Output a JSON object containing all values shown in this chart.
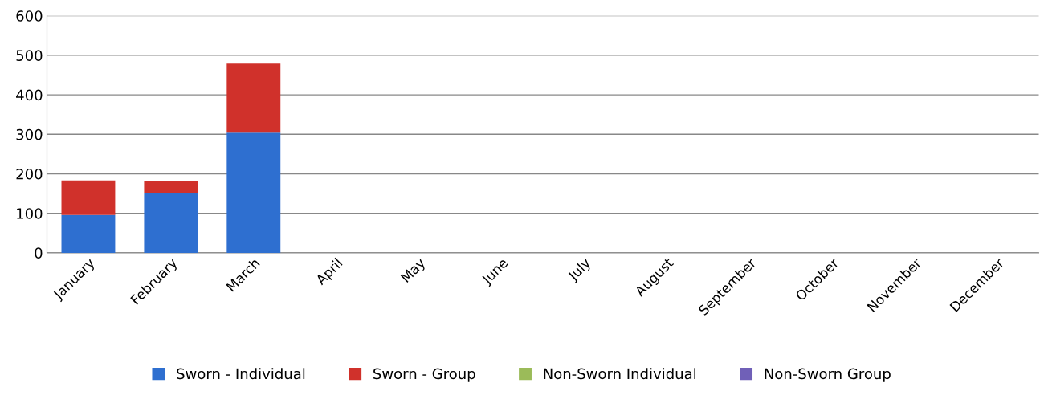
{
  "chart_data": {
    "type": "bar",
    "stacked": true,
    "categories": [
      "January",
      "February",
      "March",
      "April",
      "May",
      "June",
      "July",
      "August",
      "September",
      "October",
      "November",
      "December"
    ],
    "series": [
      {
        "name": "Sworn - Individual",
        "color": "#2e6fd0",
        "values": [
          96,
          152,
          304,
          null,
          null,
          null,
          null,
          null,
          null,
          null,
          null,
          null
        ]
      },
      {
        "name": "Sworn - Group",
        "color": "#d0312b",
        "values": [
          87,
          29,
          175,
          null,
          null,
          null,
          null,
          null,
          null,
          null,
          null,
          null
        ]
      },
      {
        "name": "Non-Sworn Individual",
        "color": "#9bbb59",
        "values": [
          0,
          0,
          0,
          null,
          null,
          null,
          null,
          null,
          null,
          null,
          null,
          null
        ]
      },
      {
        "name": "Non-Sworn Group",
        "color": "#7060b8",
        "values": [
          0,
          0,
          0,
          null,
          null,
          null,
          null,
          null,
          null,
          null,
          null,
          null
        ]
      }
    ],
    "ylim": [
      0,
      600
    ],
    "yticks": [
      0,
      100,
      200,
      300,
      400,
      500,
      600
    ],
    "grid": "y",
    "legend": "bottom"
  }
}
